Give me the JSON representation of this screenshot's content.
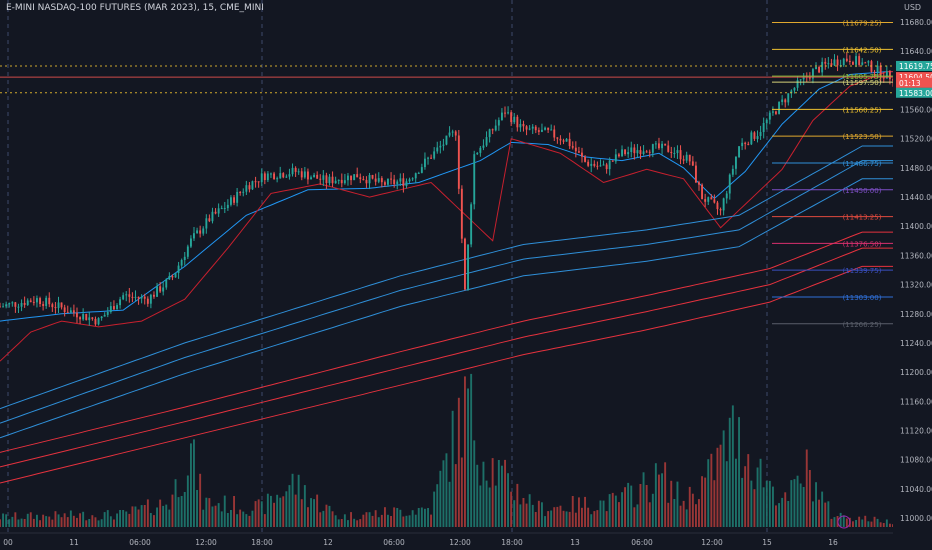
{
  "header": {
    "symbol_line": "E-MINI NASDAQ-100 FUTURES (MAR 2023), 15, CME_MINI",
    "currency": "USD"
  },
  "colors": {
    "background": "#131722",
    "up": "#26a69a",
    "down": "#ef5350",
    "text": "#b2b5be",
    "grid": "#2a2e39",
    "session_line": "#3d4a6b",
    "ema_blue": "#2f8fd8",
    "ema_red": "#e5323e",
    "fast_ema": "#2196f3",
    "trailing_red": "#c8202e"
  },
  "time_labels": [
    "00",
    "11",
    "06:00",
    "12:00",
    "18:00",
    "12",
    "06:00",
    "12:00",
    "18:00",
    "13",
    "06:00",
    "12:00",
    "15",
    "16"
  ],
  "session_times": [
    "18:00",
    "12:00",
    "18:00",
    "18:00",
    "15"
  ],
  "price_labels": [
    11680.0,
    11640.0,
    11600.0,
    11560.0,
    11520.0,
    11480.0,
    11440.0,
    11400.0,
    11360.0,
    11320.0,
    11280.0,
    11240.0,
    11200.0,
    11160.0,
    11120.0,
    11080.0,
    11040.0,
    11000.0
  ],
  "levels": [
    {
      "label": "(11679.25)",
      "price": 11679.25,
      "color": "#e0a82e"
    },
    {
      "label": "(11642.50)",
      "price": 11642.5,
      "color": "#f0c330"
    },
    {
      "label": "(11605.75)",
      "price": 11605.75,
      "color": "#8bbf3e"
    },
    {
      "label": "(11597.50)",
      "price": 11597.5,
      "color": "#d6d27a"
    },
    {
      "label": "(11560.25)",
      "price": 11560.25,
      "color": "#f0c330"
    },
    {
      "label": "(11523.50)",
      "price": 11523.5,
      "color": "#e0a82e"
    },
    {
      "label": "(11486.75)",
      "price": 11486.75,
      "color": "#2f8fd8"
    },
    {
      "label": "(11450.00)",
      "price": 11450.0,
      "color": "#7d4fc4"
    },
    {
      "label": "(11413.25)",
      "price": 11413.25,
      "color": "#e04a3e"
    },
    {
      "label": "(11376.50)",
      "price": 11376.5,
      "color": "#d8306e"
    },
    {
      "label": "(11339.75)",
      "price": 11339.75,
      "color": "#3a4fc0"
    },
    {
      "label": "(11303.00)",
      "price": 11303.0,
      "color": "#2f6fd8"
    },
    {
      "label": "(11266.25)",
      "price": 11266.25,
      "color": "#5a5f6a"
    }
  ],
  "badges": [
    {
      "label": "11619.75",
      "price": 11619.75,
      "color": "#26a69a"
    },
    {
      "label": "11604.50",
      "price": 11604.5,
      "color": "#ef5350"
    },
    {
      "label": "01:13",
      "price": 11596.5,
      "color": "#ef5350"
    },
    {
      "label": "11583.00",
      "price": 11583.0,
      "color": "#26a69a"
    }
  ],
  "chart_data": {
    "type": "candlestick",
    "title": "E-MINI NASDAQ-100 FUTURES (MAR 2023), 15, CME_MINI",
    "ylim": [
      10985,
      11710
    ],
    "x_range": [
      0,
      290
    ],
    "y_unit": "USD",
    "grid": false,
    "horizontal_refs": [
      {
        "price": 11619.75,
        "style": "dotted",
        "color": "#f0c330"
      },
      {
        "price": 11583.0,
        "style": "dotted",
        "color": "#f0c330"
      },
      {
        "price": 11604.5,
        "style": "solid",
        "color": "#ef5350"
      }
    ],
    "series": [
      {
        "name": "price",
        "role": "candles",
        "anchors": [
          [
            0,
            11290
          ],
          [
            12,
            11300
          ],
          [
            22,
            11285
          ],
          [
            32,
            11270
          ],
          [
            40,
            11305
          ],
          [
            48,
            11300
          ],
          [
            56,
            11330
          ],
          [
            62,
            11380
          ],
          [
            68,
            11410
          ],
          [
            74,
            11430
          ],
          [
            80,
            11455
          ],
          [
            86,
            11470
          ],
          [
            96,
            11475
          ],
          [
            106,
            11462
          ],
          [
            116,
            11470
          ],
          [
            124,
            11458
          ],
          [
            132,
            11462
          ],
          [
            142,
            11505
          ],
          [
            148,
            11530
          ],
          [
            151,
            11310
          ],
          [
            154,
            11498
          ],
          [
            158,
            11520
          ],
          [
            164,
            11558
          ],
          [
            170,
            11532
          ],
          [
            178,
            11528
          ],
          [
            184,
            11518
          ],
          [
            190,
            11488
          ],
          [
            196,
            11480
          ],
          [
            202,
            11500
          ],
          [
            210,
            11508
          ],
          [
            218,
            11505
          ],
          [
            224,
            11490
          ],
          [
            228,
            11440
          ],
          [
            234,
            11420
          ],
          [
            240,
            11510
          ],
          [
            246,
            11528
          ],
          [
            252,
            11560
          ],
          [
            258,
            11590
          ],
          [
            264,
            11612
          ],
          [
            270,
            11625
          ],
          [
            276,
            11630
          ],
          [
            283,
            11618
          ],
          [
            288,
            11606
          ]
        ]
      },
      {
        "name": "volume",
        "role": "volume",
        "anchors": [
          [
            0,
            8
          ],
          [
            40,
            10
          ],
          [
            55,
            20
          ],
          [
            62,
            60
          ],
          [
            66,
            20
          ],
          [
            85,
            15
          ],
          [
            95,
            35
          ],
          [
            110,
            8
          ],
          [
            140,
            15
          ],
          [
            148,
            75
          ],
          [
            152,
            100
          ],
          [
            156,
            60
          ],
          [
            165,
            35
          ],
          [
            175,
            15
          ],
          [
            200,
            20
          ],
          [
            215,
            40
          ],
          [
            222,
            20
          ],
          [
            230,
            40
          ],
          [
            238,
            75
          ],
          [
            245,
            50
          ],
          [
            255,
            20
          ],
          [
            262,
            45
          ],
          [
            270,
            10
          ],
          [
            290,
            4
          ]
        ]
      },
      {
        "name": "fast ema",
        "role": "line",
        "color": "#2196f3",
        "anchors": [
          [
            0,
            11270
          ],
          [
            20,
            11280
          ],
          [
            40,
            11285
          ],
          [
            60,
            11345
          ],
          [
            80,
            11415
          ],
          [
            100,
            11450
          ],
          [
            120,
            11452
          ],
          [
            136,
            11460
          ],
          [
            148,
            11478
          ],
          [
            156,
            11490
          ],
          [
            166,
            11515
          ],
          [
            178,
            11512
          ],
          [
            190,
            11495
          ],
          [
            202,
            11490
          ],
          [
            214,
            11500
          ],
          [
            222,
            11480
          ],
          [
            232,
            11438
          ],
          [
            242,
            11475
          ],
          [
            254,
            11540
          ],
          [
            266,
            11588
          ],
          [
            276,
            11608
          ],
          [
            288,
            11612
          ]
        ]
      },
      {
        "name": "trailing stop",
        "role": "line",
        "color": "#c8202e",
        "anchors": [
          [
            0,
            11215
          ],
          [
            10,
            11255
          ],
          [
            20,
            11270
          ],
          [
            32,
            11262
          ],
          [
            46,
            11270
          ],
          [
            60,
            11300
          ],
          [
            74,
            11370
          ],
          [
            88,
            11445
          ],
          [
            104,
            11458
          ],
          [
            120,
            11440
          ],
          [
            140,
            11460
          ],
          [
            150,
            11420
          ],
          [
            160,
            11380
          ],
          [
            166,
            11520
          ],
          [
            182,
            11500
          ],
          [
            196,
            11460
          ],
          [
            210,
            11478
          ],
          [
            222,
            11465
          ],
          [
            234,
            11398
          ],
          [
            244,
            11438
          ],
          [
            254,
            11478
          ],
          [
            264,
            11545
          ],
          [
            276,
            11592
          ],
          [
            288,
            11612
          ]
        ]
      },
      {
        "name": "ema band 1",
        "role": "line",
        "color": "#2f8fd8",
        "anchors": [
          [
            0,
            11150
          ],
          [
            60,
            11240
          ],
          [
            130,
            11332
          ],
          [
            170,
            11375
          ],
          [
            210,
            11395
          ],
          [
            240,
            11415
          ],
          [
            280,
            11510
          ]
        ]
      },
      {
        "name": "ema band 2",
        "role": "line",
        "color": "#2f8fd8",
        "anchors": [
          [
            0,
            11130
          ],
          [
            60,
            11220
          ],
          [
            130,
            11312
          ],
          [
            170,
            11355
          ],
          [
            210,
            11375
          ],
          [
            240,
            11395
          ],
          [
            280,
            11490
          ]
        ]
      },
      {
        "name": "ema band 3",
        "role": "line",
        "color": "#2f8fd8",
        "anchors": [
          [
            0,
            11110
          ],
          [
            60,
            11198
          ],
          [
            130,
            11290
          ],
          [
            170,
            11332
          ],
          [
            210,
            11352
          ],
          [
            240,
            11372
          ],
          [
            280,
            11465
          ]
        ]
      },
      {
        "name": "ema band 4",
        "role": "line",
        "color": "#e5323e",
        "anchors": [
          [
            0,
            11090
          ],
          [
            60,
            11152
          ],
          [
            130,
            11228
          ],
          [
            170,
            11270
          ],
          [
            210,
            11305
          ],
          [
            250,
            11342
          ],
          [
            280,
            11392
          ]
        ]
      },
      {
        "name": "ema band 5",
        "role": "line",
        "color": "#e5323e",
        "anchors": [
          [
            0,
            11070
          ],
          [
            60,
            11132
          ],
          [
            130,
            11206
          ],
          [
            170,
            11248
          ],
          [
            210,
            11283
          ],
          [
            250,
            11320
          ],
          [
            280,
            11370
          ]
        ]
      },
      {
        "name": "ema band 6",
        "role": "line",
        "color": "#e5323e",
        "anchors": [
          [
            0,
            11048
          ],
          [
            60,
            11110
          ],
          [
            130,
            11182
          ],
          [
            170,
            11224
          ],
          [
            210,
            11258
          ],
          [
            250,
            11296
          ],
          [
            280,
            11345
          ]
        ]
      }
    ]
  }
}
